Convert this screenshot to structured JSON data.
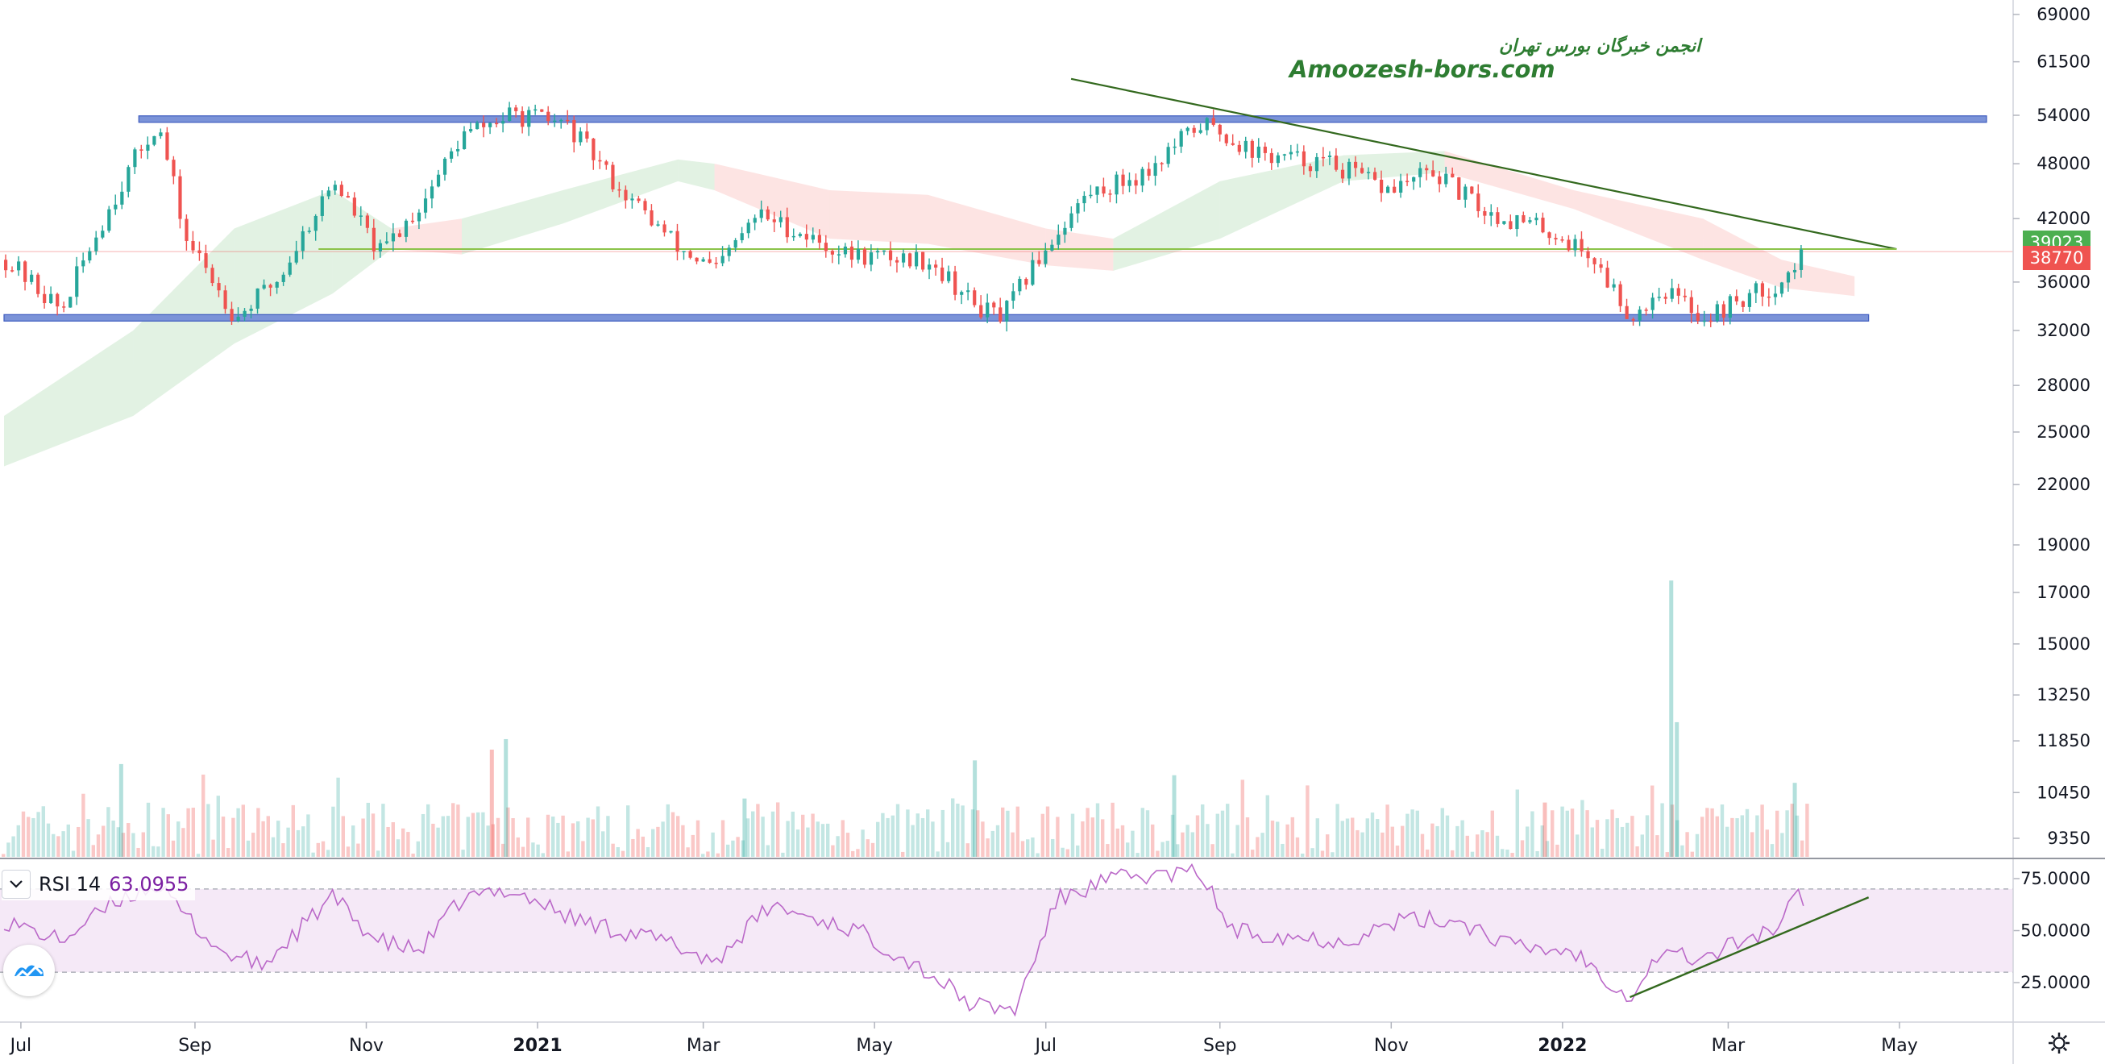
{
  "chart_data": {
    "type": "candlestick",
    "watermark": {
      "line1": "انجمن خبرگان بورس تهران",
      "line2": "Amoozesh-bors.com"
    },
    "price_axis": {
      "scale": "log",
      "ticks": [
        69000,
        61500,
        54000,
        48000,
        42000,
        36000,
        32000,
        28000,
        25000,
        22000,
        19000,
        17000,
        15000,
        13250,
        11850,
        10450,
        9350
      ]
    },
    "x_axis": {
      "ticks": [
        "Jul",
        "Sep",
        "Nov",
        "2021",
        "Mar",
        "May",
        "Jul",
        "Sep",
        "Nov",
        "2022",
        "Mar",
        "May"
      ],
      "range": [
        "2020-06-25",
        "2022-06-01"
      ]
    },
    "price_labels": [
      {
        "value": "39023",
        "color": "#4caf50"
      },
      {
        "value": "38770",
        "color": "#ef5350"
      }
    ],
    "closes": [
      {
        "date": "2020-06-25",
        "close": 38000
      },
      {
        "date": "2020-07-15",
        "close": 33500
      },
      {
        "date": "2020-07-30",
        "close": 42000
      },
      {
        "date": "2020-08-10",
        "close": 48500
      },
      {
        "date": "2020-08-18",
        "close": 53000
      },
      {
        "date": "2020-08-28",
        "close": 40000
      },
      {
        "date": "2020-09-15",
        "close": 33000
      },
      {
        "date": "2020-10-01",
        "close": 36500
      },
      {
        "date": "2020-10-20",
        "close": 46000
      },
      {
        "date": "2020-11-05",
        "close": 38500
      },
      {
        "date": "2020-11-20",
        "close": 43500
      },
      {
        "date": "2020-12-05",
        "close": 51500
      },
      {
        "date": "2020-12-22",
        "close": 54000
      },
      {
        "date": "2021-01-10",
        "close": 53000
      },
      {
        "date": "2021-01-30",
        "close": 45000
      },
      {
        "date": "2021-02-20",
        "close": 39000
      },
      {
        "date": "2021-03-05",
        "close": 37000
      },
      {
        "date": "2021-03-20",
        "close": 42500
      },
      {
        "date": "2021-04-20",
        "close": 38500
      },
      {
        "date": "2021-05-20",
        "close": 38000
      },
      {
        "date": "2021-06-05",
        "close": 34000
      },
      {
        "date": "2021-06-15",
        "close": 33000
      },
      {
        "date": "2021-06-30",
        "close": 39000
      },
      {
        "date": "2021-07-15",
        "close": 44500
      },
      {
        "date": "2021-08-05",
        "close": 47000
      },
      {
        "date": "2021-08-25",
        "close": 53000
      },
      {
        "date": "2021-09-15",
        "close": 49000
      },
      {
        "date": "2021-10-10",
        "close": 48000
      },
      {
        "date": "2021-10-30",
        "close": 45000
      },
      {
        "date": "2021-11-15",
        "close": 47000
      },
      {
        "date": "2021-12-05",
        "close": 42500
      },
      {
        "date": "2021-12-25",
        "close": 41000
      },
      {
        "date": "2022-01-10",
        "close": 38500
      },
      {
        "date": "2022-01-25",
        "close": 33000
      },
      {
        "date": "2022-02-05",
        "close": 35500
      },
      {
        "date": "2022-02-20",
        "close": 33000
      },
      {
        "date": "2022-03-05",
        "close": 34500
      },
      {
        "date": "2022-03-20",
        "close": 36000
      },
      {
        "date": "2022-03-28",
        "close": 38770
      }
    ],
    "ichimoku_cloud": [
      {
        "date": "2020-06-25",
        "top": 26000,
        "bottom": 23000,
        "color": "green"
      },
      {
        "date": "2020-08-10",
        "top": 32000,
        "bottom": 26000,
        "color": "green"
      },
      {
        "date": "2020-09-15",
        "top": 41000,
        "bottom": 31000,
        "color": "green"
      },
      {
        "date": "2020-10-20",
        "top": 45000,
        "bottom": 35000,
        "color": "green"
      },
      {
        "date": "2020-11-10",
        "top": 41000,
        "bottom": 39000,
        "color": "red"
      },
      {
        "date": "2020-12-05",
        "top": 42000,
        "bottom": 38500,
        "color": "green"
      },
      {
        "date": "2021-01-10",
        "top": 45000,
        "bottom": 41500,
        "color": "green"
      },
      {
        "date": "2021-02-20",
        "top": 48500,
        "bottom": 46000,
        "color": "green"
      },
      {
        "date": "2021-03-05",
        "top": 48000,
        "bottom": 45000,
        "color": "red"
      },
      {
        "date": "2021-04-15",
        "top": 45000,
        "bottom": 40000,
        "color": "red"
      },
      {
        "date": "2021-05-20",
        "top": 44500,
        "bottom": 39500,
        "color": "red"
      },
      {
        "date": "2021-07-01",
        "top": 41000,
        "bottom": 37500,
        "color": "red"
      },
      {
        "date": "2021-07-25",
        "top": 40000,
        "bottom": 37000,
        "color": "green"
      },
      {
        "date": "2021-09-01",
        "top": 46000,
        "bottom": 40000,
        "color": "green"
      },
      {
        "date": "2021-10-15",
        "top": 49000,
        "bottom": 46000,
        "color": "green"
      },
      {
        "date": "2021-11-20",
        "top": 49500,
        "bottom": 47000,
        "color": "red"
      },
      {
        "date": "2022-01-05",
        "top": 45000,
        "bottom": 43000,
        "color": "red"
      },
      {
        "date": "2022-02-20",
        "top": 42000,
        "bottom": 38000,
        "color": "red"
      },
      {
        "date": "2022-03-20",
        "top": 38000,
        "bottom": 35500,
        "color": "red"
      },
      {
        "date": "2022-04-15",
        "top": 36500,
        "bottom": 34800,
        "color": "red"
      }
    ],
    "volume": [
      {
        "date": "2020-08-05",
        "value": 11200,
        "color": "green"
      },
      {
        "date": "2020-12-15",
        "value": 11600,
        "color": "red"
      },
      {
        "date": "2020-12-20",
        "value": 11900,
        "color": "green"
      },
      {
        "date": "2021-03-15",
        "value": 10300,
        "color": "green"
      },
      {
        "date": "2021-06-05",
        "value": 11300,
        "color": "green"
      },
      {
        "date": "2021-08-15",
        "value": 10900,
        "color": "green"
      },
      {
        "date": "2021-12-25",
        "value": 10200,
        "color": "red"
      },
      {
        "date": "2022-02-08",
        "value": 17500,
        "color": "green"
      },
      {
        "date": "2022-02-10",
        "value": 12400,
        "color": "green"
      },
      {
        "date": "2022-03-24",
        "value": 10700,
        "color": "green"
      }
    ],
    "drawings": [
      {
        "type": "resistance-band",
        "value": 53500,
        "from": "2020-08-12",
        "to": "2022-06-01"
      },
      {
        "type": "support-band",
        "value": 33000,
        "from": "2020-06-25",
        "to": "2022-04-20"
      },
      {
        "type": "trendline",
        "from": {
          "date": "2021-07-10",
          "value": 59000
        },
        "to": {
          "date": "2022-04-30",
          "value": 39000
        }
      },
      {
        "type": "horizontal",
        "value": 39000,
        "from": "2020-10-15",
        "to": "2022-04-30"
      },
      {
        "type": "rsi-trendline",
        "from": {
          "date": "2022-01-25",
          "value": 18
        },
        "to": {
          "date": "2022-04-20",
          "value": 66
        }
      }
    ],
    "rsi": {
      "name": "RSI 14",
      "value": "63.0955",
      "upper": 70,
      "lower": 30,
      "ticks": [
        "75.0000",
        "50.0000",
        "25.0000"
      ],
      "series": [
        {
          "date": "2020-06-25",
          "value": 55
        },
        {
          "date": "2020-07-15",
          "value": 45
        },
        {
          "date": "2020-08-05",
          "value": 65
        },
        {
          "date": "2020-08-18",
          "value": 72
        },
        {
          "date": "2020-09-10",
          "value": 40
        },
        {
          "date": "2020-09-25",
          "value": 33
        },
        {
          "date": "2020-10-20",
          "value": 66
        },
        {
          "date": "2020-11-05",
          "value": 45
        },
        {
          "date": "2020-11-20",
          "value": 40
        },
        {
          "date": "2020-12-05",
          "value": 65
        },
        {
          "date": "2020-12-22",
          "value": 70
        },
        {
          "date": "2021-01-15",
          "value": 55
        },
        {
          "date": "2021-02-15",
          "value": 45
        },
        {
          "date": "2021-03-05",
          "value": 35
        },
        {
          "date": "2021-03-25",
          "value": 62
        },
        {
          "date": "2021-04-25",
          "value": 50
        },
        {
          "date": "2021-05-20",
          "value": 30
        },
        {
          "date": "2021-06-05",
          "value": 14
        },
        {
          "date": "2021-06-20",
          "value": 12
        },
        {
          "date": "2021-07-05",
          "value": 65
        },
        {
          "date": "2021-07-25",
          "value": 75
        },
        {
          "date": "2021-08-25",
          "value": 78
        },
        {
          "date": "2021-09-05",
          "value": 50
        },
        {
          "date": "2021-10-15",
          "value": 45
        },
        {
          "date": "2021-11-05",
          "value": 55
        },
        {
          "date": "2021-11-25",
          "value": 55
        },
        {
          "date": "2021-12-15",
          "value": 42
        },
        {
          "date": "2022-01-05",
          "value": 40
        },
        {
          "date": "2022-01-25",
          "value": 18
        },
        {
          "date": "2022-02-05",
          "value": 40
        },
        {
          "date": "2022-02-20",
          "value": 36
        },
        {
          "date": "2022-03-05",
          "value": 45
        },
        {
          "date": "2022-03-20",
          "value": 52
        },
        {
          "date": "2022-03-25",
          "value": 68
        },
        {
          "date": "2022-03-28",
          "value": 63
        }
      ]
    }
  }
}
